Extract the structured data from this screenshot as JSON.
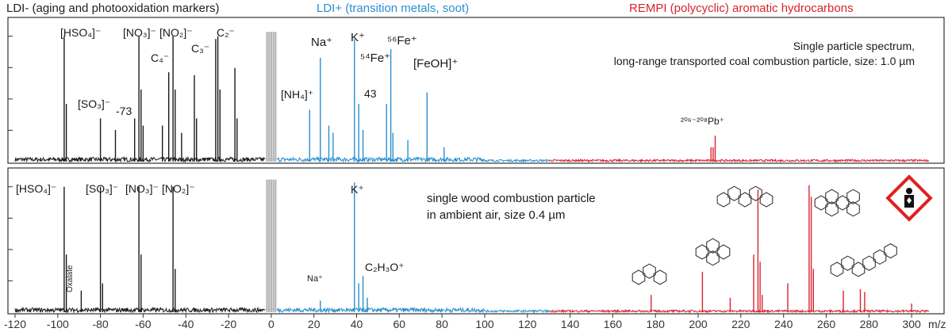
{
  "header": {
    "ldi_neg": "LDI- (aging and photooxidation markers)",
    "ldi_pos": "LDI+ (transition metals, soot)",
    "rempi": "REMPI (polycyclic) aromatic hydrocarbons"
  },
  "colors": {
    "ldi_neg": "#1a1a1a",
    "ldi_gray": "#b4b4b4",
    "ldi_pos": "#2a8fd0",
    "rempi": "#d8242e",
    "hazard": "#e02020"
  },
  "chart_data": [
    {
      "type": "line",
      "panel": "top",
      "xlim": [
        -120,
        310
      ],
      "unit": "m/z",
      "segments": [
        {
          "name": "LDI-",
          "x_range": [
            -120,
            -3
          ]
        },
        {
          "name": "LDI-/LDI+ gap",
          "x_range": [
            -3,
            3
          ]
        },
        {
          "name": "LDI+",
          "x_range": [
            3,
            130
          ]
        },
        {
          "name": "REMPI",
          "x_range": [
            130,
            310
          ]
        }
      ],
      "peaks": [
        [
          -97,
          0.87
        ],
        [
          -96,
          0.4
        ],
        [
          -80,
          0.3
        ],
        [
          -73,
          0.22
        ],
        [
          -64,
          0.3
        ],
        [
          -62,
          0.87
        ],
        [
          -61,
          0.5
        ],
        [
          -60,
          0.25
        ],
        [
          -51,
          0.25
        ],
        [
          -48,
          0.62
        ],
        [
          -46,
          0.87
        ],
        [
          -45,
          0.5
        ],
        [
          -42,
          0.2
        ],
        [
          -36,
          0.6
        ],
        [
          -35,
          0.3
        ],
        [
          -26,
          0.85
        ],
        [
          -25,
          0.87
        ],
        [
          -24,
          0.5
        ],
        [
          -17,
          0.65
        ],
        [
          -16,
          0.3
        ],
        [
          -2,
          0.9
        ],
        [
          -1,
          0.9
        ],
        [
          0,
          0.9
        ],
        [
          1,
          0.9
        ],
        [
          2,
          0.9
        ],
        [
          18,
          0.36
        ],
        [
          23,
          0.72
        ],
        [
          27,
          0.25
        ],
        [
          29,
          0.2
        ],
        [
          39,
          0.85
        ],
        [
          41,
          0.4
        ],
        [
          43,
          0.22
        ],
        [
          54,
          0.4
        ],
        [
          56,
          0.78
        ],
        [
          57,
          0.2
        ],
        [
          64,
          0.15
        ],
        [
          73,
          0.48
        ],
        [
          81,
          0.1
        ],
        [
          206,
          0.1
        ],
        [
          207,
          0.1
        ],
        [
          208,
          0.18
        ]
      ],
      "annotations": [
        {
          "text": "[HSO₄]⁻",
          "x": -97
        },
        {
          "text": "[NO₃]⁻",
          "x": -62
        },
        {
          "text": "[NO₂]⁻",
          "x": -46
        },
        {
          "text": "C₄⁻",
          "x": -48
        },
        {
          "text": "C₃⁻",
          "x": -36
        },
        {
          "text": "C₂⁻",
          "x": -25
        },
        {
          "text": "[SO₃]⁻",
          "x": -80
        },
        {
          "text": "-73",
          "x": -73
        },
        {
          "text": "Na⁺",
          "x": 23
        },
        {
          "text": "K⁺",
          "x": 39
        },
        {
          "text": "⁵⁶Fe⁺",
          "x": 56
        },
        {
          "text": "⁵⁴Fe⁺",
          "x": 54
        },
        {
          "text": "[NH₄]⁺",
          "x": 18
        },
        {
          "text": "43",
          "x": 43
        },
        {
          "text": "[FeOH]⁺",
          "x": 73
        },
        {
          "text": "²⁰⁶⁻²⁰⁸Pb⁺",
          "x": 207
        }
      ],
      "description_line1": "Single particle spectrum,",
      "description_line2": "long-range transported coal combustion particle, size: 1.0 µm"
    },
    {
      "type": "line",
      "panel": "bottom",
      "xlim": [
        -120,
        310
      ],
      "unit": "m/z",
      "xticks": [
        -120,
        -100,
        -80,
        -60,
        -40,
        -20,
        0,
        20,
        40,
        60,
        80,
        100,
        120,
        140,
        160,
        180,
        200,
        220,
        240,
        260,
        280,
        300
      ],
      "x_unit_label": "m/z",
      "peaks": [
        [
          -97,
          0.87
        ],
        [
          -96,
          0.4
        ],
        [
          -89,
          0.15
        ],
        [
          -80,
          0.87
        ],
        [
          -79,
          0.2
        ],
        [
          -62,
          0.87
        ],
        [
          -61,
          0.4
        ],
        [
          -46,
          0.87
        ],
        [
          -45,
          0.3
        ],
        [
          -2,
          0.92
        ],
        [
          -1,
          0.92
        ],
        [
          0,
          0.92
        ],
        [
          1,
          0.92
        ],
        [
          2,
          0.92
        ],
        [
          23,
          0.08
        ],
        [
          39,
          0.9
        ],
        [
          41,
          0.2
        ],
        [
          43,
          0.25
        ],
        [
          45,
          0.1
        ],
        [
          178,
          0.12
        ],
        [
          202,
          0.28
        ],
        [
          215,
          0.1
        ],
        [
          226,
          0.4
        ],
        [
          228,
          0.85
        ],
        [
          229,
          0.35
        ],
        [
          230,
          0.12
        ],
        [
          242,
          0.2
        ],
        [
          252,
          0.88
        ],
        [
          253,
          0.8
        ],
        [
          254,
          0.3
        ],
        [
          268,
          0.15
        ],
        [
          276,
          0.16
        ],
        [
          278,
          0.14
        ],
        [
          300,
          0.06
        ]
      ],
      "annotations": [
        {
          "text": "[HSO₄]⁻",
          "x": -97
        },
        {
          "text": "[SO₃]⁻",
          "x": -80
        },
        {
          "text": "[NO₃]⁻",
          "x": -62
        },
        {
          "text": "[NO₂]⁻",
          "x": -46
        },
        {
          "text": "Oxalate",
          "x": -89
        },
        {
          "text": "K⁺",
          "x": 39
        },
        {
          "text": "Na⁺",
          "x": 23
        },
        {
          "text": "C₂H₃O⁺",
          "x": 43
        }
      ],
      "description_line1": "single wood combustion particle",
      "description_line2": "in ambient air, size 0.4 µm",
      "structures": [
        {
          "name": "phenanthrene",
          "x": 178
        },
        {
          "name": "pyrene",
          "x": 202
        },
        {
          "name": "chrysene",
          "x": 228
        },
        {
          "name": "benzopyrene",
          "x": 252
        },
        {
          "name": "dibenzanthracene",
          "x": 278
        }
      ],
      "hazard_icon": "health-hazard-icon"
    }
  ]
}
